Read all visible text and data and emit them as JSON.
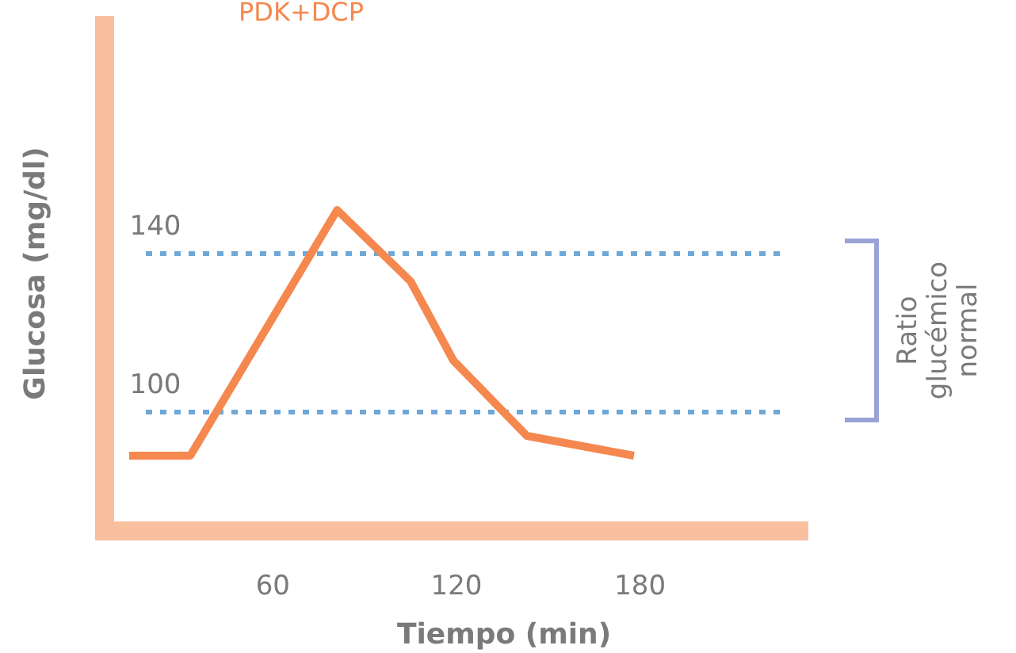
{
  "chart_data": {
    "type": "line",
    "title": "PDK+DCP",
    "xlabel": "Tiempo (min)",
    "ylabel": "Glucosa (mg/dl)",
    "x": [
      13,
      33,
      81,
      105,
      119,
      143,
      178
    ],
    "series": [
      {
        "color": "#f5884f",
        "values": [
          89,
          89,
          151,
          133,
          113,
          94,
          89
        ]
      }
    ],
    "xlim": [
      5,
      235
    ],
    "xticks": [
      60,
      120,
      180
    ],
    "ylim": [
      70,
      200
    ],
    "yticks": [
      100,
      140
    ],
    "ref_lines": [
      {
        "axis": "y",
        "value": 100,
        "color": "#6fa8d6",
        "line_style": "dotted"
      },
      {
        "axis": "y",
        "value": 140,
        "color": "#6fa8d6",
        "line_style": "dotted"
      }
    ],
    "annotations": [
      "Ratio glucémico normal"
    ],
    "marker": "none",
    "line_style": "solid",
    "grid": false
  }
}
